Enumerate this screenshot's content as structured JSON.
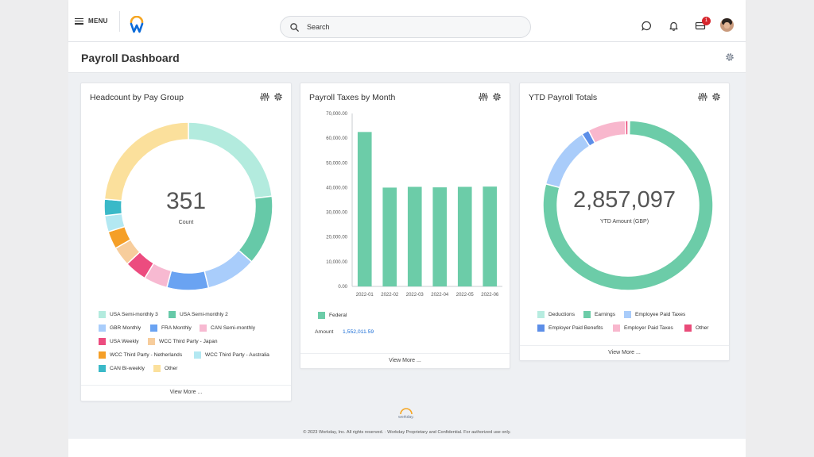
{
  "topbar": {
    "menu_label": "MENU",
    "search_placeholder": "Search",
    "inbox_badge": "1"
  },
  "page": {
    "title": "Payroll Dashboard"
  },
  "colors": {
    "usa_semi_monthly_3": "#b3ebde",
    "usa_semi_monthly_2": "#66c9a8",
    "gbr_monthly": "#a9cdfb",
    "fra_monthly": "#6aa3f2",
    "can_semi_monthly": "#f7b9d1",
    "usa_weekly": "#ec4c7f",
    "wcc_japan": "#f7cd9c",
    "wcc_netherlands": "#f59f27",
    "wcc_australia": "#b3e8f2",
    "can_biweekly": "#3ab9c8",
    "other_yellow": "#fbe09c",
    "earnings": "#6ccca8",
    "deductions": "#b7ece0",
    "employee_taxes": "#a9ccfa",
    "employer_benefits": "#5c8ee8",
    "employer_taxes": "#f8b7cd",
    "other_pink": "#e94b79"
  },
  "headcount": {
    "title": "Headcount by Pay Group",
    "center_value": "351",
    "center_label": "Count",
    "view_more": "View More ...",
    "legend": [
      {
        "label": "USA Semi-monthly 3",
        "color_key": "usa_semi_monthly_3"
      },
      {
        "label": "USA Semi-monthly 2",
        "color_key": "usa_semi_monthly_2"
      },
      {
        "label": "GBR Monthly",
        "color_key": "gbr_monthly"
      },
      {
        "label": "FRA Monthly",
        "color_key": "fra_monthly"
      },
      {
        "label": "CAN Semi-monthly",
        "color_key": "can_semi_monthly"
      },
      {
        "label": "USA Weekly",
        "color_key": "usa_weekly"
      },
      {
        "label": "WCC Third Party - Japan",
        "color_key": "wcc_japan"
      },
      {
        "label": "WCC Third Party - Netherlands",
        "color_key": "wcc_netherlands"
      },
      {
        "label": "WCC Third Party - Australia",
        "color_key": "wcc_australia"
      },
      {
        "label": "CAN Bi-weekly",
        "color_key": "can_biweekly"
      },
      {
        "label": "Other",
        "color_key": "other_yellow"
      }
    ],
    "segments": [
      {
        "name": "USA Semi-monthly 3",
        "value": 81,
        "color_key": "usa_semi_monthly_3"
      },
      {
        "name": "USA Semi-monthly 2",
        "value": 47,
        "color_key": "usa_semi_monthly_2"
      },
      {
        "name": "GBR Monthly",
        "value": 34,
        "color_key": "gbr_monthly"
      },
      {
        "name": "FRA Monthly",
        "value": 28,
        "color_key": "fra_monthly"
      },
      {
        "name": "CAN Semi-monthly",
        "value": 16,
        "color_key": "can_semi_monthly"
      },
      {
        "name": "USA Weekly",
        "value": 15,
        "color_key": "usa_weekly"
      },
      {
        "name": "WCC Third Party - Japan",
        "value": 13,
        "color_key": "wcc_japan"
      },
      {
        "name": "WCC Third Party - Netherlands",
        "value": 12,
        "color_key": "wcc_netherlands"
      },
      {
        "name": "WCC Third Party - Australia",
        "value": 11,
        "color_key": "wcc_australia"
      },
      {
        "name": "CAN Bi-weekly",
        "value": 11,
        "color_key": "can_biweekly"
      },
      {
        "name": "Other",
        "value": 83,
        "color_key": "other_yellow"
      }
    ]
  },
  "taxes": {
    "title": "Payroll Taxes by Month",
    "legend_label": "Federal",
    "amount_label": "Amount",
    "amount_value": "1,552,011.59",
    "view_more": "View More ..."
  },
  "ytd": {
    "title": "YTD Payroll Totals",
    "center_value": "2,857,097",
    "center_label": "YTD Amount (GBP)",
    "view_more": "View More ...",
    "legend": [
      {
        "label": "Deductions",
        "color_key": "deductions"
      },
      {
        "label": "Earnings",
        "color_key": "earnings"
      },
      {
        "label": "Employee Paid Taxes",
        "color_key": "employee_taxes"
      },
      {
        "label": "Employer Paid Benefits",
        "color_key": "employer_benefits"
      },
      {
        "label": "Employer Paid Taxes",
        "color_key": "employer_taxes"
      },
      {
        "label": "Other",
        "color_key": "other_pink"
      }
    ],
    "segments": [
      {
        "name": "Deductions",
        "value": 0.3,
        "color_key": "deductions"
      },
      {
        "name": "Earnings",
        "value": 78.8,
        "color_key": "earnings"
      },
      {
        "name": "Employee Paid Taxes",
        "value": 11.8,
        "color_key": "employee_taxes"
      },
      {
        "name": "Employer Paid Benefits",
        "value": 1.4,
        "color_key": "employer_benefits"
      },
      {
        "name": "Employer Paid Taxes",
        "value": 7.2,
        "color_key": "employer_taxes"
      },
      {
        "name": "Other",
        "value": 0.5,
        "color_key": "other_pink"
      }
    ]
  },
  "footer": {
    "logo_text": "workday.",
    "copyright": "© 2023 Workday, Inc. All rights reserved. · Workday Proprietary and Confidential. For authorized use only."
  },
  "chart_data": {
    "type": "bar",
    "categories": [
      "2022-01",
      "2022-02",
      "2022-03",
      "2022-04",
      "2022-05",
      "2022-06"
    ],
    "series": [
      {
        "name": "Federal",
        "values": [
          62500,
          40000,
          40300,
          40100,
          40300,
          40400
        ],
        "color": "#6ccca8"
      }
    ],
    "yticks": [
      "0.00",
      "10,000.00",
      "20,000.00",
      "30,000.00",
      "40,000.00",
      "50,000.00",
      "60,000.00",
      "70,000.00"
    ],
    "ylim": [
      0,
      70000
    ],
    "grid": false
  }
}
